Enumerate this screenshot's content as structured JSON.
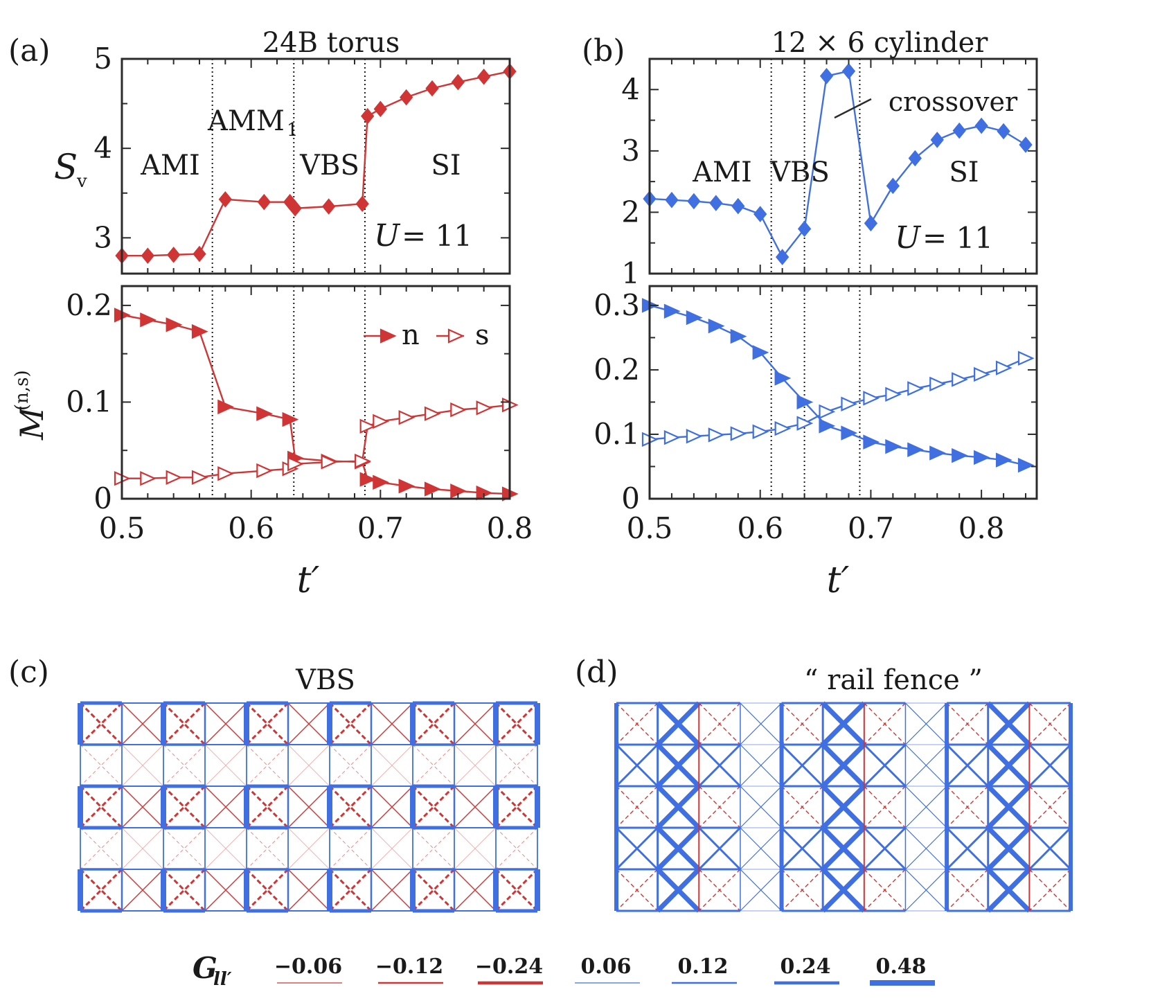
{
  "colors": {
    "red": "#d03535",
    "blue": "#3f6fe0",
    "axis": "#2b2b2b",
    "vline": "#1a1a1a"
  },
  "panel_labels": [
    "(a)",
    "(b)",
    "(c)",
    "(d)"
  ],
  "chart_data": [
    {
      "id": "a_top",
      "type": "line",
      "title": "24B torus",
      "ylabel": "S_v",
      "xlim": [
        0.5,
        0.8
      ],
      "ylim": [
        2.6,
        5.0
      ],
      "yticks": [
        3,
        4,
        5
      ],
      "ytick_labels": [
        "3",
        "4",
        "5"
      ],
      "vlines": [
        0.57,
        0.633,
        0.688
      ],
      "phase_labels": [
        "AMI",
        "AMM_1",
        "VBS",
        "SI"
      ],
      "annotation": "U = 11",
      "series": [
        {
          "marker": "diamond",
          "x": [
            0.5,
            0.52,
            0.54,
            0.56,
            0.58,
            0.61,
            0.63,
            0.634,
            0.66,
            0.686,
            0.69,
            0.7,
            0.72,
            0.74,
            0.76,
            0.78,
            0.8
          ],
          "y": [
            2.8,
            2.8,
            2.81,
            2.82,
            3.43,
            3.4,
            3.4,
            3.33,
            3.35,
            3.38,
            4.36,
            4.44,
            4.57,
            4.67,
            4.74,
            4.8,
            4.86
          ]
        }
      ]
    },
    {
      "id": "a_bot",
      "type": "line",
      "ylabel": "M^(n,s)",
      "xlabel": "t'",
      "xlim": [
        0.5,
        0.8
      ],
      "ylim": [
        0,
        0.22
      ],
      "yticks": [
        0,
        0.1,
        0.2
      ],
      "ytick_labels": [
        "0",
        "0.1",
        "0.2"
      ],
      "xticks": [
        0.5,
        0.6,
        0.7,
        0.8
      ],
      "xtick_labels": [
        "0.5",
        "0.6",
        "0.7",
        "0.8"
      ],
      "vlines": [
        0.57,
        0.633,
        0.688
      ],
      "legend": [
        "n",
        "s"
      ],
      "series": [
        {
          "name": "n",
          "marker": "tri-filled",
          "x": [
            0.5,
            0.52,
            0.54,
            0.56,
            0.58,
            0.61,
            0.63,
            0.634,
            0.66,
            0.686,
            0.69,
            0.7,
            0.72,
            0.74,
            0.76,
            0.78,
            0.8
          ],
          "y": [
            0.19,
            0.185,
            0.18,
            0.173,
            0.095,
            0.088,
            0.082,
            0.042,
            0.039,
            0.038,
            0.02,
            0.017,
            0.013,
            0.01,
            0.008,
            0.006,
            0.005
          ]
        },
        {
          "name": "s",
          "marker": "tri-open",
          "x": [
            0.5,
            0.52,
            0.54,
            0.56,
            0.58,
            0.61,
            0.63,
            0.634,
            0.66,
            0.686,
            0.69,
            0.7,
            0.72,
            0.74,
            0.76,
            0.78,
            0.8
          ],
          "y": [
            0.021,
            0.021,
            0.022,
            0.022,
            0.026,
            0.029,
            0.031,
            0.036,
            0.038,
            0.039,
            0.075,
            0.08,
            0.084,
            0.088,
            0.092,
            0.094,
            0.097
          ]
        }
      ]
    },
    {
      "id": "b_top",
      "type": "line",
      "title": "12 × 6 cylinder",
      "ylabel": "",
      "xlim": [
        0.5,
        0.85
      ],
      "ylim": [
        1,
        4.5
      ],
      "yticks": [
        1,
        2,
        3,
        4
      ],
      "ytick_labels": [
        "1",
        "2",
        "3",
        "4"
      ],
      "vlines": [
        0.61,
        0.64,
        0.69
      ],
      "phase_labels": [
        "AMI",
        "VBS",
        "SI"
      ],
      "annotation": "U = 11",
      "callout": "crossover",
      "series": [
        {
          "marker": "diamond",
          "x": [
            0.5,
            0.52,
            0.54,
            0.56,
            0.58,
            0.6,
            0.62,
            0.64,
            0.66,
            0.68,
            0.7,
            0.72,
            0.74,
            0.76,
            0.78,
            0.8,
            0.82,
            0.84
          ],
          "y": [
            2.22,
            2.2,
            2.18,
            2.15,
            2.1,
            1.97,
            1.27,
            1.73,
            4.22,
            4.3,
            1.82,
            2.43,
            2.88,
            3.18,
            3.33,
            3.41,
            3.32,
            3.1
          ]
        }
      ]
    },
    {
      "id": "b_bot",
      "type": "line",
      "xlabel": "t'",
      "xlim": [
        0.5,
        0.85
      ],
      "ylim": [
        0,
        0.33
      ],
      "yticks": [
        0,
        0.1,
        0.2,
        0.3
      ],
      "ytick_labels": [
        "0",
        "0.1",
        "0.2",
        "0.3"
      ],
      "xticks": [
        0.5,
        0.6,
        0.7,
        0.8
      ],
      "xtick_labels": [
        "0.5",
        "0.6",
        "0.7",
        "0.8"
      ],
      "vlines": [
        0.61,
        0.64,
        0.69
      ],
      "series": [
        {
          "name": "n",
          "marker": "tri-filled",
          "x": [
            0.5,
            0.52,
            0.54,
            0.56,
            0.58,
            0.6,
            0.62,
            0.64,
            0.66,
            0.68,
            0.7,
            0.72,
            0.74,
            0.76,
            0.78,
            0.8,
            0.82,
            0.84
          ],
          "y": [
            0.3,
            0.291,
            0.281,
            0.268,
            0.252,
            0.227,
            0.187,
            0.15,
            0.113,
            0.102,
            0.088,
            0.081,
            0.076,
            0.071,
            0.067,
            0.064,
            0.06,
            0.052
          ]
        },
        {
          "name": "s",
          "marker": "tri-open",
          "x": [
            0.5,
            0.52,
            0.54,
            0.56,
            0.58,
            0.6,
            0.62,
            0.64,
            0.66,
            0.68,
            0.7,
            0.72,
            0.74,
            0.76,
            0.78,
            0.8,
            0.82,
            0.84
          ],
          "y": [
            0.092,
            0.095,
            0.097,
            0.099,
            0.101,
            0.104,
            0.109,
            0.117,
            0.135,
            0.147,
            0.156,
            0.162,
            0.171,
            0.178,
            0.185,
            0.193,
            0.203,
            0.218
          ]
        }
      ]
    }
  ],
  "lattice": {
    "c_title": "VBS",
    "d_title": "“ rail fence ”"
  },
  "legend_bonds": {
    "label": "G_ll'",
    "entries": [
      {
        "label": "−0.06",
        "color": "red",
        "w": 1.2
      },
      {
        "label": "−0.12",
        "color": "red",
        "w": 2.4
      },
      {
        "label": "−0.24",
        "color": "red",
        "w": 4.5
      },
      {
        "label": "0.06",
        "color": "blue",
        "w": 1.2
      },
      {
        "label": "0.12",
        "color": "blue",
        "w": 2.4
      },
      {
        "label": "0.24",
        "color": "blue",
        "w": 4.5
      },
      {
        "label": "0.48",
        "color": "blue",
        "w": 8
      }
    ]
  }
}
